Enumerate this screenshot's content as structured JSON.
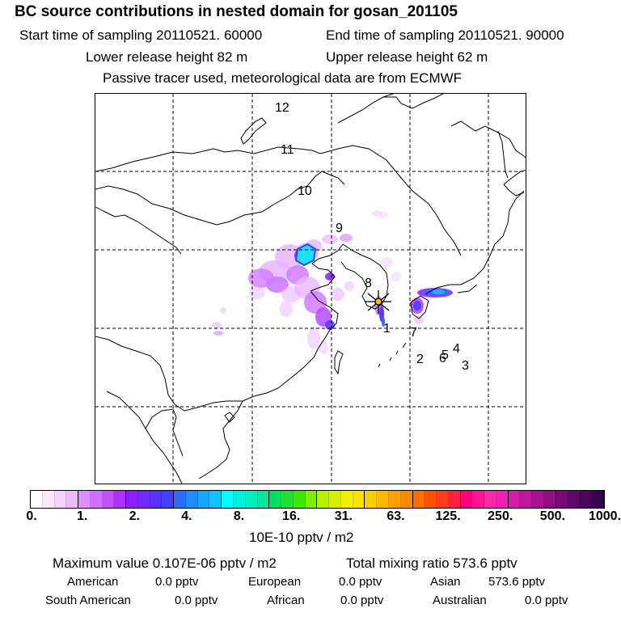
{
  "title": "BC  source contributions in nested domain for gosan_201105",
  "header": {
    "start_time": "Start time of sampling 20110521. 60000",
    "end_time": "End time of sampling 20110521. 90000",
    "lower_height": "Lower release height   82 m",
    "upper_height": "Upper release height   62 m",
    "tracer_note": "Passive tracer used, meteorological data are from ECMWF"
  },
  "map": {
    "receptor_marker": "star-icon",
    "trajectory_labels": [
      "1",
      "2",
      "3",
      "4",
      "5",
      "6",
      "7",
      "8",
      "9",
      "10",
      "11",
      "12"
    ],
    "plume_colors": [
      "#e9b6ff",
      "#d27cff",
      "#b34cff",
      "#8a2bff",
      "#5b3cff",
      "#2f6dff",
      "#2aa7ff",
      "#1ee0ff"
    ]
  },
  "colorbar": {
    "ticks": [
      "0.",
      "1.",
      "2.",
      "4.",
      "8.",
      "16.",
      "31.",
      "63.",
      "125.",
      "250.",
      "500.",
      "1000."
    ],
    "unit_label": "10E-10 pptv / m2",
    "colors": [
      "#ffffff",
      "#fbe8ff",
      "#f4d2ff",
      "#ecb9ff",
      "#dd8eff",
      "#d070ff",
      "#c350ff",
      "#b030ff",
      "#8a20ff",
      "#7028ff",
      "#5530ff",
      "#4040ff",
      "#2a6dff",
      "#1c8dff",
      "#14a8ff",
      "#10c4ff",
      "#00ffff",
      "#00f0e0",
      "#00f0c0",
      "#00e8a0",
      "#00e060",
      "#20e030",
      "#40e800",
      "#80f000",
      "#b8f000",
      "#d8f000",
      "#f0f000",
      "#ffe000",
      "#ffd000",
      "#ffb800",
      "#ffa000",
      "#ff8800",
      "#ff6c00",
      "#ff5000",
      "#ff3a20",
      "#ff2040",
      "#ff0080",
      "#ff1493",
      "#ff28a8",
      "#f020b0",
      "#d81aa8",
      "#c0169c",
      "#a81290",
      "#900e84",
      "#780a78",
      "#60086a",
      "#4a065c",
      "#36044e"
    ]
  },
  "footer": {
    "max_value": "Maximum value  0.107E-06 pptv / m2",
    "total_mixing": "Total mixing ratio      573.6 pptv",
    "american": "American",
    "american_val": "0.0 pptv",
    "european": "European",
    "european_val": "0.0 pptv",
    "asian": "Asian",
    "asian_val": "573.6 pptv",
    "south_american": "South American",
    "south_american_val": "0.0 pptv",
    "african": "African",
    "african_val": "0.0 pptv",
    "australian": "Australian",
    "australian_val": "0.0 pptv"
  }
}
